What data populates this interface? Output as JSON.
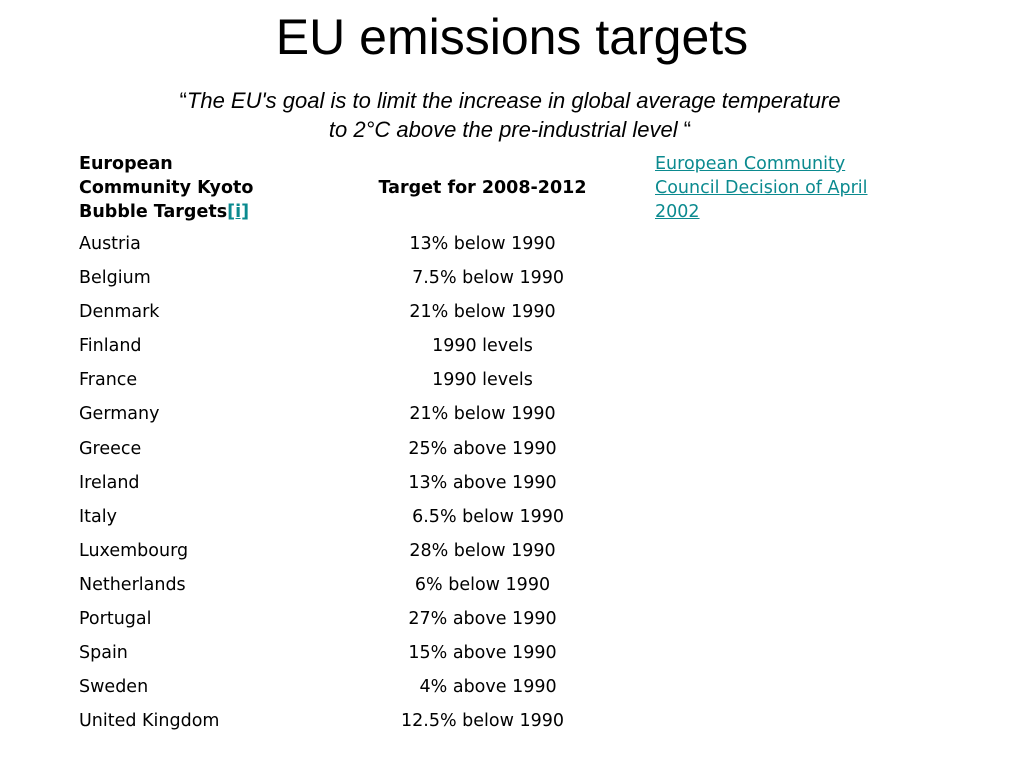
{
  "title": "EU emissions targets",
  "quote": {
    "open_mark": "“",
    "line1": "The EU's goal is to limit the increase in global average temperature",
    "line2": "to 2°C above the pre-industrial level",
    "close_mark": " “"
  },
  "table": {
    "headers": {
      "col1_lines": [
        "European",
        "Community Kyoto",
        "Bubble Targets"
      ],
      "col1_footnote": "[i]",
      "col2": "Target for 2008-2012",
      "col3_lines": [
        "European Community",
        "Council Decision of April",
        "2002"
      ]
    },
    "rows": [
      {
        "country": "Austria",
        "target": "13% below 1990"
      },
      {
        "country": "Belgium",
        "target": "  7.5% below 1990"
      },
      {
        "country": "Denmark",
        "target": "21% below 1990"
      },
      {
        "country": "Finland",
        "target": "1990 levels"
      },
      {
        "country": "France",
        "target": "1990 levels"
      },
      {
        "country": "Germany",
        "target": "21% below 1990"
      },
      {
        "country": "Greece",
        "target": "25% above 1990"
      },
      {
        "country": "Ireland",
        "target": "13% above 1990"
      },
      {
        "country": "Italy",
        "target": "  6.5% below 1990"
      },
      {
        "country": "Luxembourg",
        "target": "28% below 1990"
      },
      {
        "country": "Netherlands",
        "target": "6% below 1990"
      },
      {
        "country": "Portugal",
        "target": "27% above 1990"
      },
      {
        "country": "Spain",
        "target": "15% above 1990"
      },
      {
        "country": "Sweden",
        "target": "  4% above 1990"
      },
      {
        "country": "United Kingdom",
        "target": "12.5% below 1990"
      }
    ]
  },
  "colors": {
    "link": "#0b8a8f",
    "text": "#000000",
    "background": "#ffffff"
  }
}
